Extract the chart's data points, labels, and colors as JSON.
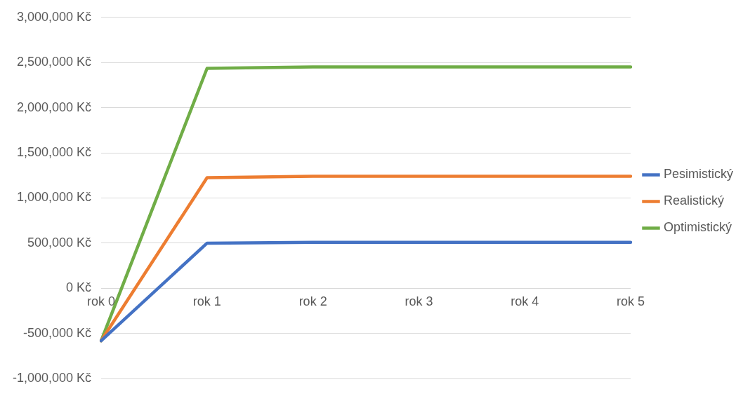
{
  "chart_data": {
    "type": "line",
    "categories": [
      "rok 0",
      "rok 1",
      "rok 2",
      "rok 3",
      "rok 4",
      "rok 5"
    ],
    "series": [
      {
        "name": "Pesimistický",
        "color": "#4472c4",
        "values": [
          -580000,
          500000,
          510000,
          510000,
          510000,
          510000
        ]
      },
      {
        "name": "Realistický",
        "color": "#ed7d31",
        "values": [
          -580000,
          1225000,
          1240000,
          1240000,
          1240000,
          1240000
        ]
      },
      {
        "name": "Optimistický",
        "color": "#70ad47",
        "values": [
          -580000,
          2436000,
          2451000,
          2451000,
          2451000,
          2451000
        ]
      }
    ],
    "ylim": [
      -1000000,
      3000000
    ],
    "yticks": [
      {
        "value": -1000000,
        "label": "-1,000,000 Kč"
      },
      {
        "value": -500000,
        "label": "-500,000 Kč"
      },
      {
        "value": 0,
        "label": "0 Kč"
      },
      {
        "value": 500000,
        "label": "500,000 Kč"
      },
      {
        "value": 1000000,
        "label": "1,000,000 Kč"
      },
      {
        "value": 1500000,
        "label": "1,500,000 Kč"
      },
      {
        "value": 2000000,
        "label": "2,000,000 Kč"
      },
      {
        "value": 2500000,
        "label": "2,500,000 Kč"
      },
      {
        "value": 3000000,
        "label": "3,000,000 Kč"
      }
    ],
    "grid": "y",
    "legend": "right",
    "marker": "none",
    "line_style": "solid"
  }
}
